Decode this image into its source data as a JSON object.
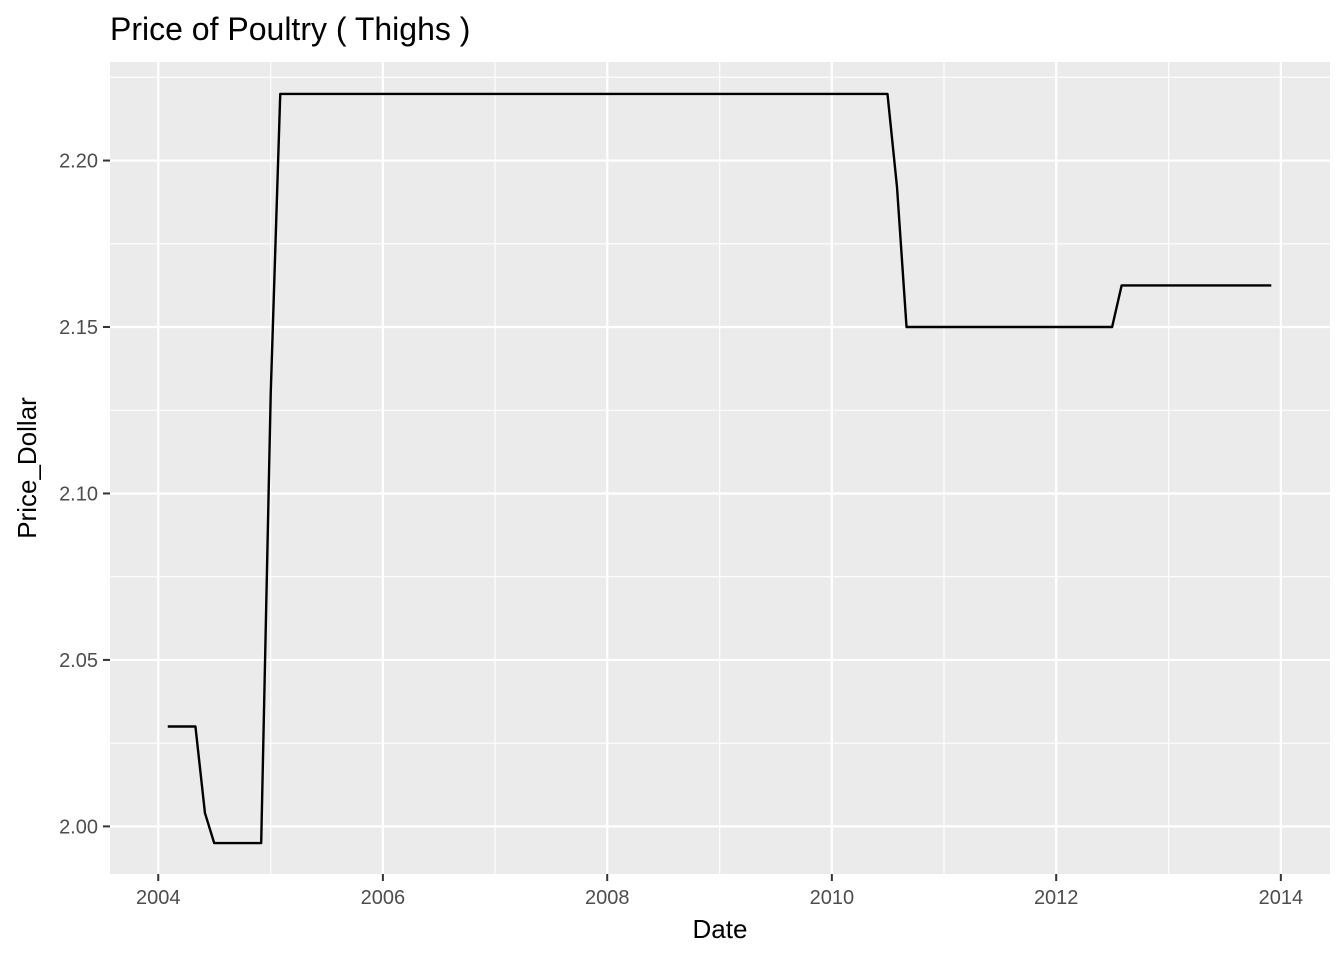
{
  "chart_data": {
    "type": "line",
    "title": "Price of Poultry ( Thighs )",
    "xlabel": "Date",
    "ylabel": "Price_Dollar",
    "x_ticks": [
      "2004",
      "2006",
      "2008",
      "2010",
      "2012",
      "2014"
    ],
    "y_ticks": [
      "2.00",
      "2.05",
      "2.10",
      "2.15",
      "2.20"
    ],
    "xlim": [
      "2003-07-28",
      "2014-06-10"
    ],
    "ylim": [
      1.9857,
      2.2296
    ],
    "grid": true,
    "legend": "none",
    "background_color": "#ebebeb",
    "grid_color": "#ffffff",
    "line_color": "#000000",
    "series": [
      {
        "x": [
          "2004-02-01",
          "2004-03-01",
          "2004-04-01",
          "2004-05-01",
          "2004-06-01",
          "2004-07-01",
          "2004-08-01",
          "2004-09-01",
          "2004-10-01",
          "2004-11-01",
          "2004-12-01",
          "2005-01-01",
          "2005-02-01",
          "2005-03-01",
          "2010-06-01",
          "2010-07-01",
          "2010-08-01",
          "2010-09-01",
          "2012-06-01",
          "2012-07-01",
          "2012-08-01",
          "2013-12-01"
        ],
        "y": [
          2.03,
          2.03,
          2.03,
          2.03,
          2.004,
          1.995,
          1.995,
          1.995,
          1.995,
          1.995,
          1.995,
          2.13,
          2.22,
          2.22,
          2.22,
          2.22,
          2.192,
          2.15,
          2.15,
          2.15,
          2.1625,
          2.1625
        ]
      }
    ]
  }
}
